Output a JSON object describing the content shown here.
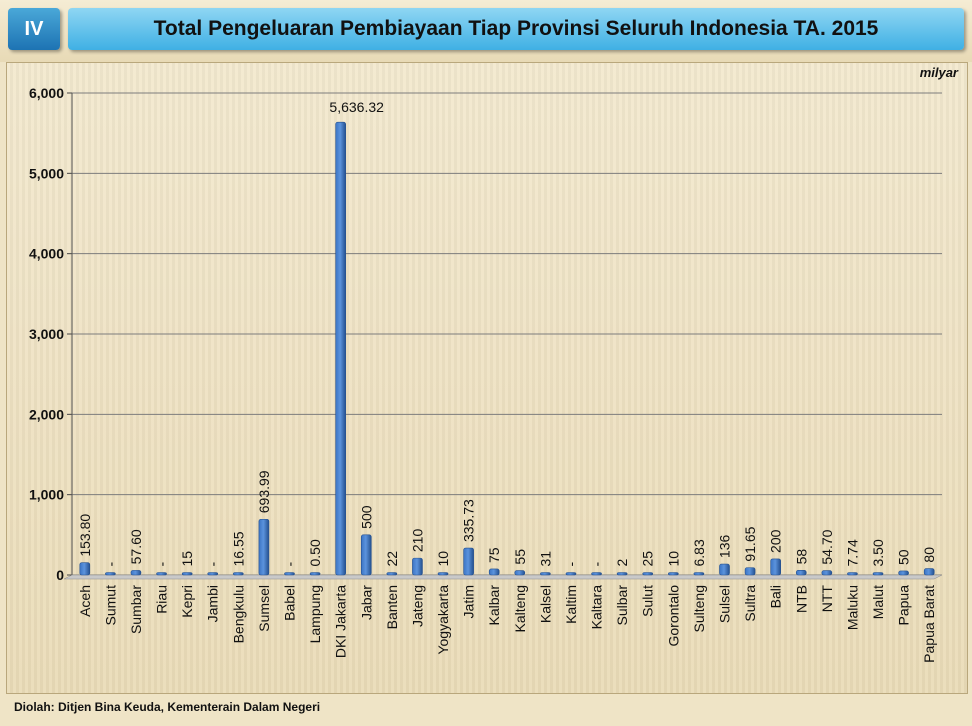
{
  "badge": "IV",
  "title": "Total Pengeluaran Pembiayaan Tiap Provinsi Seluruh Indonesia TA. 2015",
  "source": "Diolah: Ditjen Bina Keuda, Kementerain Dalam Negeri",
  "colors": {
    "bar": "#3b74c4",
    "bar_dark": "#24508f",
    "grid": "#7c7c7c"
  },
  "chart_data": {
    "type": "bar",
    "unit_label": "milyar",
    "ylim": [
      0,
      6000
    ],
    "yticks": [
      0,
      1000,
      2000,
      3000,
      4000,
      5000,
      6000
    ],
    "ytick_labels": [
      "0",
      "1,000",
      "2,000",
      "3,000",
      "4,000",
      "5,000",
      "6,000"
    ],
    "grid": true,
    "categories": [
      "Aceh",
      "Sumut",
      "Sumbar",
      "Riau",
      "Kepri",
      "Jambi",
      "Bengkulu",
      "Sumsel",
      "Babel",
      "Lampung",
      "DKI Jakarta",
      "Jabar",
      "Banten",
      "Jateng",
      "Yogyakarta",
      "Jatim",
      "Kalbar",
      "Kalteng",
      "Kalsel",
      "Kaltim",
      "Kaltara",
      "Sulbar",
      "Sulut",
      "Gorontalo",
      "Sulteng",
      "Sulsel",
      "Sultra",
      "Bali",
      "NTB",
      "NTT",
      "Maluku",
      "Malut",
      "Papua",
      "Papua Barat"
    ],
    "values": [
      153.8,
      0,
      57.6,
      0,
      15,
      0,
      16.55,
      693.99,
      0,
      0.5,
      5636.32,
      500,
      22,
      210,
      10,
      335.73,
      75,
      55,
      31,
      0,
      0,
      2,
      25,
      10,
      6.83,
      136,
      91.65,
      200,
      58,
      54.7,
      7.74,
      3.5,
      50,
      80
    ],
    "data_labels": [
      "153.80",
      "-",
      "57.60",
      "-",
      "15",
      "-",
      "16.55",
      "693.99",
      "-",
      "0.50",
      "5,636.32",
      "500",
      "22",
      "210",
      "10",
      "335.73",
      "75",
      "55",
      "31",
      "-",
      "-",
      "2",
      "25",
      "10",
      "6.83",
      "136",
      "91.65",
      "200",
      "58",
      "54.70",
      "7.74",
      "3.50",
      "50",
      "80"
    ]
  }
}
